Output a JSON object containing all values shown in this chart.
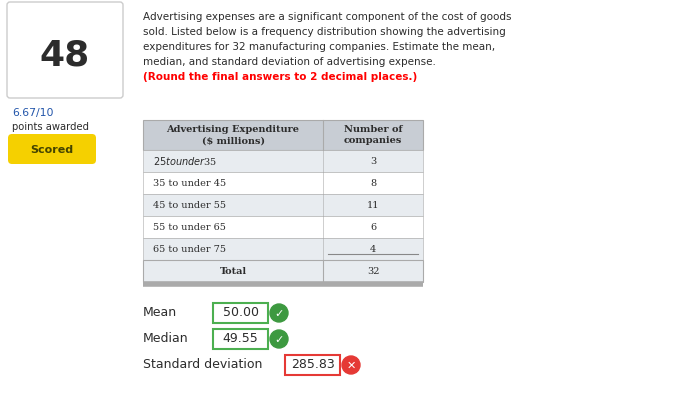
{
  "question_number": "48",
  "question_text_line1": "Advertising expenses are a significant component of the cost of goods",
  "question_text_line2": "sold. Listed below is a frequency distribution showing the advertising",
  "question_text_line3": "expenditures for 32 manufacturing companies. Estimate the mean,",
  "question_text_line4": "median, and standard deviation of advertising expense.",
  "question_text_red": "(Round the final answers to 2 decimal places.)",
  "score": "6.67/10",
  "score_label": "points awarded",
  "scored_button": "Scored",
  "scored_button_color": "#f5d000",
  "table_header_col1": "Advertising Expenditure\n($ millions)",
  "table_header_col2": "Number of\ncompanies",
  "table_rows": [
    [
      "$25 to under $35",
      "3"
    ],
    [
      "35 to under 45",
      "8"
    ],
    [
      "45 to under 55",
      "11"
    ],
    [
      "55 to under 65",
      "6"
    ],
    [
      "65 to under 75",
      "4"
    ]
  ],
  "table_total_label": "Total",
  "table_total_value": "32",
  "mean_label": "Mean",
  "mean_value": "50.00",
  "mean_correct": true,
  "median_label": "Median",
  "median_value": "49.55",
  "median_correct": true,
  "stddev_label": "Standard deviation",
  "stddev_value": "285.83",
  "stddev_correct": false,
  "header_bg": "#c8cdd4",
  "row_bg_alt": "#e8ecf0",
  "row_bg_white": "#ffffff",
  "border_color": "#aaaaaa",
  "text_color_dark": "#2c2c2c",
  "text_color_blue": "#2255aa",
  "correct_border": "#4caf50",
  "wrong_border": "#e53935",
  "correct_icon_color": "#3d9940",
  "wrong_icon_color": "#e53935",
  "background_color": "#ffffff"
}
